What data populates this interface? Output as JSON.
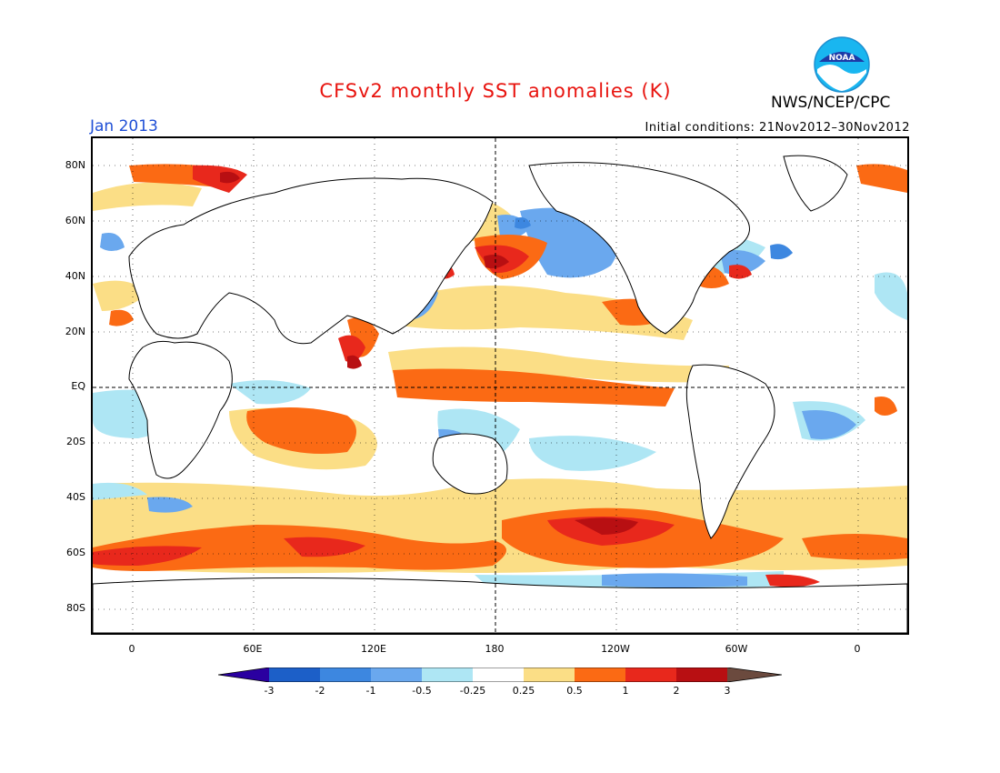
{
  "header": {
    "title": "CFSv2 monthly SST anomalies (K)",
    "month": "Jan 2013",
    "initial_conditions": "Initial conditions: 21Nov2012–30Nov2012",
    "agency": "NWS/NCEP/CPC",
    "logo_text": "NOAA"
  },
  "axes": {
    "lat_labels": [
      "80N",
      "60N",
      "40N",
      "20N",
      "EQ",
      "20S",
      "40S",
      "60S",
      "80S"
    ],
    "lon_labels": [
      "0",
      "60E",
      "120E",
      "180",
      "120W",
      "60W",
      "0"
    ]
  },
  "colorbar": {
    "levels": [
      "-3",
      "-2",
      "-1",
      "-0.5",
      "-0.25",
      "0.25",
      "0.5",
      "1",
      "2",
      "3"
    ],
    "colors": [
      "#2a00a0",
      "#1c5fc8",
      "#3d87e0",
      "#6aa8ee",
      "#aee6f4",
      "#ffffff",
      "#fbde86",
      "#fb6a14",
      "#e8281c",
      "#b80f12",
      "#6b4a3e"
    ]
  },
  "palette": {
    "title_red": "#e8140f",
    "month_blue": "#1f4fd6",
    "warm_light": "#fbde86",
    "warm_orange": "#fb6a14",
    "warm_red": "#e8281c",
    "warm_dark": "#b80f12",
    "cool_cyan": "#aee6f4",
    "cool_light": "#6aa8ee",
    "cool_mid": "#3d87e0"
  }
}
